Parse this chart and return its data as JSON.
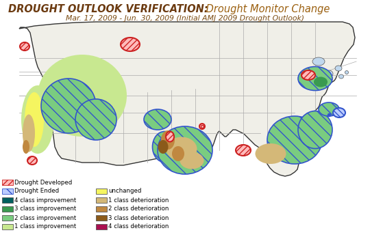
{
  "title1": "DROUGHT OUTLOOK VERIFICATION:",
  "title2": " Drought Monitor Change",
  "subtitle": "Mar. 17, 2009 - Jun. 30, 2009 (Initial AMJ 2009 Drought Outlook)",
  "title1_color": "#6b3a10",
  "title2_color": "#9b6010",
  "subtitle_color": "#7a4a10",
  "bg_map_color": "#ffffff",
  "ocean_color": "#b8cfe0",
  "land_color": "#f0efe8",
  "border_color": "#555555",
  "legend_bg": "#ffffff",
  "colors": {
    "4_improve": "#005f5f",
    "3_improve": "#3a9a50",
    "2_improve": "#7acc80",
    "1_improve": "#c8e890",
    "unchanged": "#f5f560",
    "1_deter": "#d4b878",
    "2_deter": "#c08840",
    "3_deter": "#8b5a1a",
    "4_deter": "#aa1050",
    "drought_dev_face": "#ffbbbb",
    "drought_dev_edge": "#cc2222",
    "drought_end_face": "#bbccff",
    "drought_end_edge": "#3355cc"
  },
  "legend_items_left": [
    {
      "label": "Drought Developed",
      "type": "hatch",
      "fc": "#ffbbbb",
      "ec": "#cc2222",
      "hatch": "////"
    },
    {
      "label": "Drought Ended",
      "type": "hatch",
      "fc": "#bbccff",
      "ec": "#3355cc",
      "hatch": "\\\\\\\\"
    },
    {
      "label": "4 class improvement",
      "fc": "#005f5f",
      "ec": "#444444"
    },
    {
      "label": "3 class improvement",
      "fc": "#3a9a50",
      "ec": "#444444"
    },
    {
      "label": "2 class improvement",
      "fc": "#7acc80",
      "ec": "#444444"
    },
    {
      "label": "1 class improvement",
      "fc": "#c8e890",
      "ec": "#444444"
    }
  ],
  "legend_items_right": [
    {
      "label": "unchanged",
      "fc": "#f5f560",
      "ec": "#444444"
    },
    {
      "label": "1 class deterioration",
      "fc": "#d4b878",
      "ec": "#444444"
    },
    {
      "label": "2 class deterioration",
      "fc": "#c08840",
      "ec": "#444444"
    },
    {
      "label": "3 class deterioration",
      "fc": "#8b5a1a",
      "ec": "#444444"
    },
    {
      "label": "4 class deterioration",
      "fc": "#aa1050",
      "ec": "#444444"
    }
  ]
}
